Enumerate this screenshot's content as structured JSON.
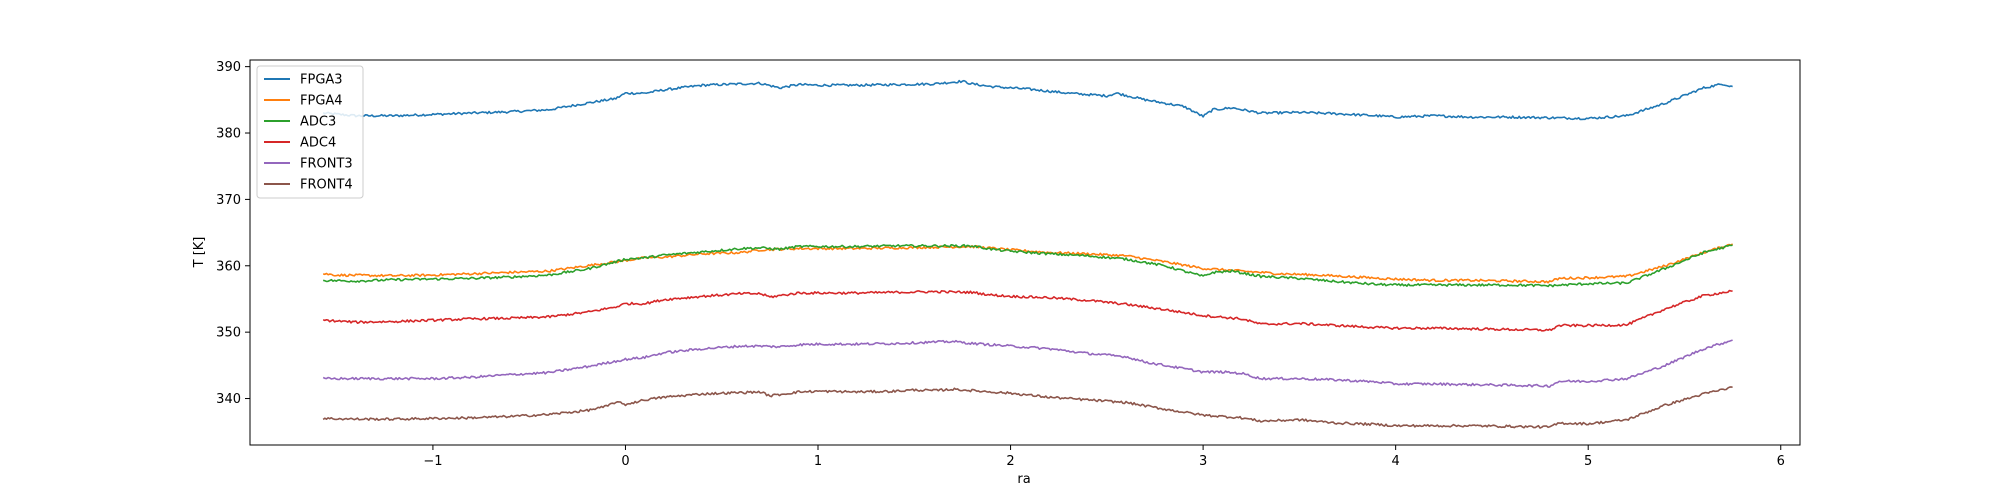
{
  "chart_data": {
    "type": "line",
    "title": "",
    "xlabel": "ra",
    "ylabel": "T [K]",
    "xlim": [
      -1.95,
      6.1
    ],
    "ylim": [
      333.0,
      391.0
    ],
    "xticks": [
      -1,
      0,
      1,
      2,
      3,
      4,
      5,
      6
    ],
    "xtick_labels": [
      "−1",
      "0",
      "1",
      "2",
      "3",
      "4",
      "5",
      "6"
    ],
    "yticks": [
      340,
      350,
      360,
      370,
      380,
      390
    ],
    "ytick_labels": [
      "340",
      "350",
      "360",
      "370",
      "380",
      "390"
    ],
    "grid": false,
    "legend": "top-left",
    "series": [
      {
        "name": "FPGA3",
        "color": "#1f77b4",
        "x": [
          -1.57,
          -1.4,
          -1.2,
          -1.0,
          -0.8,
          -0.6,
          -0.4,
          -0.2,
          -0.05,
          0.0,
          0.1,
          0.2,
          0.4,
          0.6,
          0.7,
          0.8,
          0.9,
          1.0,
          1.2,
          1.4,
          1.6,
          1.75,
          1.8,
          1.9,
          2.0,
          2.1,
          2.3,
          2.5,
          2.55,
          2.7,
          2.9,
          3.0,
          3.05,
          3.15,
          3.3,
          3.5,
          3.7,
          3.9,
          4.0,
          4.2,
          4.4,
          4.6,
          4.8,
          5.0,
          5.2,
          5.4,
          5.6,
          5.7,
          5.75
        ],
        "y": [
          383.0,
          382.6,
          382.6,
          382.8,
          383.0,
          383.2,
          383.5,
          384.5,
          385.2,
          386.0,
          386.0,
          386.5,
          387.2,
          387.4,
          387.5,
          386.8,
          387.3,
          387.2,
          387.2,
          387.3,
          387.4,
          387.8,
          387.4,
          387.0,
          386.8,
          386.6,
          386.0,
          385.6,
          386.0,
          385.0,
          384.0,
          382.5,
          383.5,
          383.8,
          383.0,
          383.1,
          382.9,
          382.6,
          382.4,
          382.6,
          382.4,
          382.4,
          382.3,
          382.2,
          382.6,
          384.5,
          386.8,
          387.4,
          387.0
        ]
      },
      {
        "name": "FPGA4",
        "color": "#ff7f0e",
        "x": [
          -1.57,
          -1.5,
          -1.2,
          -1.0,
          -0.8,
          -0.6,
          -0.4,
          -0.2,
          0.0,
          0.1,
          0.2,
          0.4,
          0.6,
          0.7,
          0.8,
          0.9,
          1.0,
          1.2,
          1.4,
          1.6,
          1.8,
          2.0,
          2.2,
          2.4,
          2.6,
          2.8,
          3.0,
          3.2,
          3.4,
          3.6,
          3.8,
          4.0,
          4.2,
          4.4,
          4.6,
          4.8,
          4.85,
          5.0,
          5.2,
          5.4,
          5.6,
          5.75
        ],
        "y": [
          358.8,
          358.6,
          358.5,
          358.6,
          358.8,
          359.0,
          359.2,
          360.0,
          360.8,
          361.2,
          361.3,
          361.8,
          362.0,
          362.4,
          362.5,
          362.6,
          362.6,
          362.6,
          362.7,
          362.8,
          362.9,
          362.4,
          362.0,
          361.8,
          361.5,
          360.6,
          359.6,
          359.2,
          358.8,
          358.6,
          358.3,
          358.0,
          357.8,
          357.8,
          357.7,
          357.6,
          358.1,
          358.2,
          358.4,
          360.0,
          362.0,
          363.3
        ]
      },
      {
        "name": "ADC3",
        "color": "#2ca02c",
        "x": [
          -1.57,
          -1.4,
          -1.2,
          -1.0,
          -0.8,
          -0.6,
          -0.4,
          -0.2,
          -0.05,
          0.0,
          0.1,
          0.2,
          0.4,
          0.6,
          0.7,
          0.8,
          0.9,
          1.0,
          1.2,
          1.4,
          1.6,
          1.8,
          1.9,
          2.0,
          2.2,
          2.4,
          2.6,
          2.8,
          3.0,
          3.05,
          3.15,
          3.3,
          3.5,
          3.7,
          3.9,
          4.0,
          4.2,
          4.4,
          4.6,
          4.8,
          5.0,
          5.2,
          5.4,
          5.6,
          5.75
        ],
        "y": [
          357.8,
          357.7,
          357.9,
          358.0,
          358.1,
          358.3,
          358.6,
          359.5,
          360.6,
          361.0,
          361.2,
          361.6,
          362.1,
          362.6,
          362.7,
          362.5,
          362.9,
          362.9,
          362.9,
          363.0,
          363.0,
          363.0,
          362.5,
          362.2,
          361.8,
          361.5,
          361.0,
          360.0,
          358.4,
          359.0,
          359.2,
          358.4,
          358.1,
          357.6,
          357.2,
          357.1,
          357.1,
          357.1,
          357.1,
          357.0,
          357.3,
          357.4,
          359.6,
          362.0,
          363.1
        ]
      },
      {
        "name": "ADC4",
        "color": "#d62728",
        "x": [
          -1.57,
          -1.4,
          -1.2,
          -1.0,
          -0.8,
          -0.6,
          -0.4,
          -0.2,
          -0.05,
          0.0,
          0.1,
          0.2,
          0.4,
          0.6,
          0.7,
          0.75,
          0.9,
          1.0,
          1.2,
          1.4,
          1.6,
          1.8,
          1.9,
          2.0,
          2.2,
          2.4,
          2.6,
          2.8,
          3.0,
          3.2,
          3.3,
          3.5,
          3.7,
          3.9,
          4.0,
          4.2,
          4.4,
          4.6,
          4.8,
          4.85,
          5.0,
          5.2,
          5.4,
          5.6,
          5.75
        ],
        "y": [
          351.8,
          351.5,
          351.6,
          351.8,
          352.0,
          352.1,
          352.3,
          353.0,
          353.8,
          354.3,
          354.3,
          354.9,
          355.4,
          355.8,
          355.8,
          355.3,
          355.9,
          355.9,
          355.9,
          356.0,
          356.1,
          356.0,
          355.6,
          355.4,
          355.2,
          354.8,
          354.2,
          353.4,
          352.5,
          352.0,
          351.2,
          351.3,
          351.0,
          350.7,
          350.6,
          350.6,
          350.5,
          350.4,
          350.3,
          351.0,
          351.0,
          351.1,
          353.5,
          355.5,
          356.2
        ]
      },
      {
        "name": "FRONT3",
        "color": "#9467bd",
        "x": [
          -1.57,
          -1.4,
          -1.2,
          -1.0,
          -0.8,
          -0.6,
          -0.4,
          -0.2,
          0.0,
          0.1,
          0.2,
          0.4,
          0.6,
          0.7,
          0.8,
          0.9,
          1.0,
          1.2,
          1.4,
          1.6,
          1.7,
          1.8,
          2.0,
          2.2,
          2.4,
          2.6,
          2.7,
          2.8,
          3.0,
          3.1,
          3.2,
          3.3,
          3.5,
          3.7,
          3.9,
          4.0,
          4.2,
          4.4,
          4.6,
          4.8,
          4.85,
          5.0,
          5.2,
          5.4,
          5.6,
          5.75
        ],
        "y": [
          343.0,
          343.0,
          343.0,
          343.0,
          343.2,
          343.6,
          343.9,
          344.8,
          345.9,
          346.2,
          346.9,
          347.5,
          347.9,
          347.9,
          347.8,
          348.1,
          348.2,
          348.2,
          348.3,
          348.5,
          348.6,
          348.3,
          347.9,
          347.5,
          346.8,
          346.3,
          345.5,
          345.0,
          344.0,
          344.0,
          343.8,
          343.0,
          343.0,
          342.8,
          342.5,
          342.2,
          342.2,
          342.1,
          342.0,
          341.9,
          342.6,
          342.6,
          343.0,
          345.0,
          347.5,
          348.8
        ]
      },
      {
        "name": "FRONT4",
        "color": "#8c564b",
        "x": [
          -1.57,
          -1.4,
          -1.2,
          -1.0,
          -0.8,
          -0.6,
          -0.4,
          -0.2,
          -0.1,
          -0.05,
          0.0,
          0.1,
          0.2,
          0.4,
          0.6,
          0.7,
          0.75,
          0.8,
          0.9,
          1.0,
          1.2,
          1.4,
          1.5,
          1.6,
          1.7,
          1.8,
          2.0,
          2.2,
          2.4,
          2.6,
          2.8,
          3.0,
          3.2,
          3.3,
          3.5,
          3.7,
          3.9,
          4.0,
          4.2,
          4.4,
          4.6,
          4.8,
          4.85,
          5.0,
          5.2,
          5.4,
          5.6,
          5.75
        ],
        "y": [
          337.0,
          336.9,
          336.9,
          337.0,
          337.1,
          337.3,
          337.6,
          338.2,
          338.8,
          339.5,
          339.1,
          339.8,
          340.2,
          340.7,
          340.9,
          341.0,
          340.4,
          340.6,
          341.0,
          341.1,
          341.0,
          341.1,
          341.3,
          341.2,
          341.4,
          341.2,
          340.8,
          340.2,
          339.8,
          339.4,
          338.4,
          337.5,
          337.1,
          336.6,
          336.8,
          336.3,
          336.1,
          335.9,
          335.9,
          335.9,
          335.8,
          335.7,
          336.3,
          336.2,
          336.8,
          339.0,
          340.7,
          341.7
        ]
      }
    ]
  }
}
